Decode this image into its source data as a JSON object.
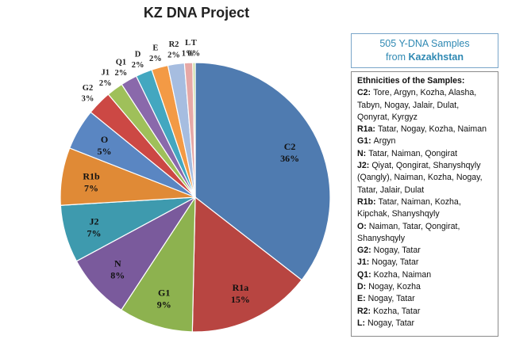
{
  "chart_data": {
    "type": "pie",
    "title": "KZ DNA Project",
    "start": "12 o'clock, clockwise",
    "slices": [
      {
        "label": "C2",
        "pct_label": "36%",
        "value": 36,
        "color": "#4f7bb0"
      },
      {
        "label": "R1a",
        "pct_label": "15%",
        "value": 15,
        "color": "#b84541"
      },
      {
        "label": "G1",
        "pct_label": "9%",
        "value": 9,
        "color": "#8db24f"
      },
      {
        "label": "N",
        "pct_label": "8%",
        "value": 8,
        "color": "#7a5a9c"
      },
      {
        "label": "J2",
        "pct_label": "7%",
        "value": 7,
        "color": "#3e9aae"
      },
      {
        "label": "R1b",
        "pct_label": "7%",
        "value": 7,
        "color": "#e08a36"
      },
      {
        "label": "O",
        "pct_label": "5%",
        "value": 5,
        "color": "#5a86c2"
      },
      {
        "label": "G2",
        "pct_label": "3%",
        "value": 3,
        "color": "#cc4844"
      },
      {
        "label": "J1",
        "pct_label": "2%",
        "value": 2,
        "color": "#9fc05a"
      },
      {
        "label": "Q1",
        "pct_label": "2%",
        "value": 2,
        "color": "#8a69ab"
      },
      {
        "label": "D",
        "pct_label": "2%",
        "value": 2,
        "color": "#43a7c0"
      },
      {
        "label": "E",
        "pct_label": "2%",
        "value": 2,
        "color": "#f39a45"
      },
      {
        "label": "R2",
        "pct_label": "2%",
        "value": 2,
        "color": "#a6bde0"
      },
      {
        "label": "L",
        "pct_label": "1%",
        "value": 1,
        "color": "#e6a8a6"
      },
      {
        "label": "T",
        "pct_label": "0%",
        "value": 0.3,
        "color": "#c8dca0"
      }
    ]
  },
  "samples_box": {
    "line1": "505 Y-DNA Samples",
    "line2_prefix": "from ",
    "line2_bold": "Kazakhstan"
  },
  "ethnicities": {
    "heading": "Ethnicities of the Samples:",
    "entries": [
      {
        "key": "C2:",
        "text": "Tore, Argyn, Kozha, Alasha, Tabyn, Nogay, Jalair, Dulat, Qonyrat, Kyrgyz"
      },
      {
        "key": "R1a:",
        "text": "Tatar, Nogay, Kozha, Naiman"
      },
      {
        "key": "G1:",
        "text": "Argyn"
      },
      {
        "key": "N:",
        "text": "Tatar, Naiman, Qongirat"
      },
      {
        "key": "J2:",
        "text": "Qiyat, Qongirat, Shanyshqyly (Qangly), Naiman, Kozha, Nogay, Tatar, Jalair, Dulat"
      },
      {
        "key": "R1b:",
        "text": "Tatar, Naiman, Kozha, Kipchak, Shanyshqyly"
      },
      {
        "key": "O:",
        "text": "Naiman, Tatar, Qongirat, Shanyshqyly"
      },
      {
        "key": "G2:",
        "text": "Nogay, Tatar"
      },
      {
        "key": "J1:",
        "text": "Nogay, Tatar"
      },
      {
        "key": "Q1:",
        "text": "Kozha, Naiman"
      },
      {
        "key": "D:",
        "text": "Nogay, Kozha"
      },
      {
        "key": "E:",
        "text": "Nogay, Tatar"
      },
      {
        "key": "R2:",
        "text": "Kozha, Tatar"
      },
      {
        "key": "L:",
        "text": "Nogay, Tatar"
      }
    ]
  }
}
